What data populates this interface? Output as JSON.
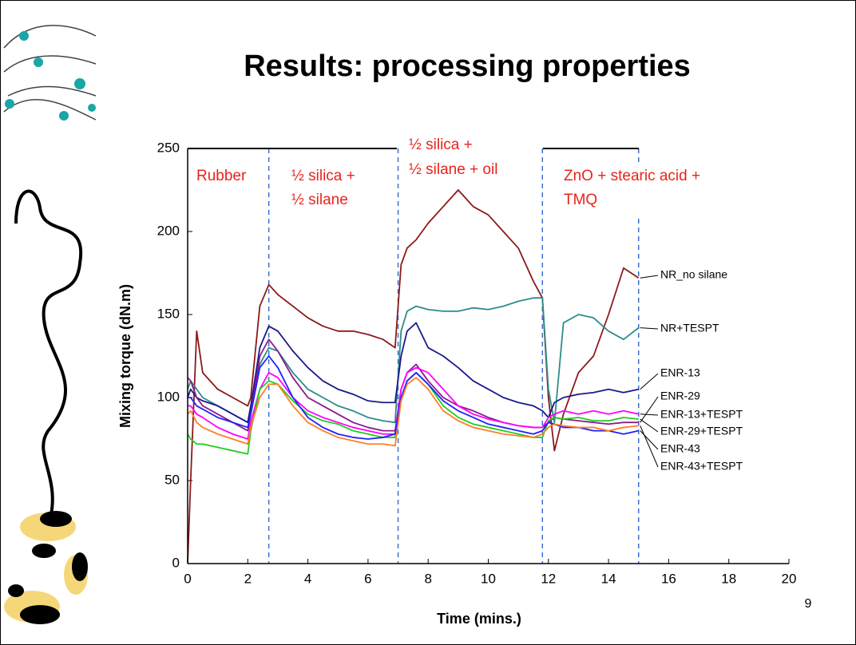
{
  "chart_data": {
    "type": "line",
    "title": "Results: processing properties",
    "x_label": "Time (mins.)",
    "y_label": "Mixing torque (dN.m)",
    "xlim": [
      0,
      20
    ],
    "xticks": [
      0,
      2,
      4,
      6,
      8,
      10,
      12,
      14,
      16,
      18,
      20
    ],
    "ylim": [
      0,
      250
    ],
    "yticks": [
      0,
      50,
      100,
      150,
      200,
      250
    ],
    "phase_boundaries": [
      2.7,
      7,
      11.8,
      15
    ],
    "annotations": [
      [
        "Rubber"
      ],
      [
        "½ silica +",
        "½ silane"
      ],
      [
        "½ silica +",
        "½ silane + oil"
      ],
      [
        "ZnO + stearic acid +",
        "TMQ"
      ]
    ],
    "x": [
      0,
      0.1,
      0.3,
      0.5,
      1,
      1.5,
      2,
      2.1,
      2.4,
      2.7,
      3,
      3.5,
      4,
      4.5,
      5,
      5.5,
      6,
      6.5,
      6.9,
      7.1,
      7.3,
      7.6,
      8,
      8.5,
      9,
      9.5,
      10,
      10.5,
      11,
      11.5,
      11.8,
      12,
      12.2,
      12.5,
      13,
      13.5,
      14,
      14.5,
      15
    ],
    "series": [
      {
        "name": "NR_no silane",
        "color": "#8b1a1a",
        "values": [
          0,
          50,
          140,
          115,
          105,
          100,
          95,
          100,
          155,
          168,
          162,
          155,
          148,
          143,
          140,
          140,
          138,
          135,
          130,
          180,
          190,
          195,
          205,
          215,
          225,
          215,
          210,
          200,
          190,
          170,
          160,
          100,
          68,
          90,
          115,
          125,
          150,
          178,
          172
        ]
      },
      {
        "name": "NR+TESPT",
        "color": "#2e8b8b",
        "values": [
          105,
          110,
          105,
          100,
          95,
          90,
          85,
          95,
          120,
          130,
          128,
          115,
          105,
          100,
          95,
          92,
          88,
          86,
          85,
          140,
          152,
          155,
          153,
          152,
          152,
          154,
          153,
          155,
          158,
          160,
          160,
          105,
          85,
          145,
          150,
          148,
          140,
          135,
          142
        ]
      },
      {
        "name": "ENR-13",
        "color": "#1a1a8b",
        "values": [
          100,
          105,
          100,
          98,
          95,
          90,
          85,
          95,
          130,
          143,
          140,
          128,
          118,
          110,
          105,
          102,
          98,
          97,
          97,
          125,
          140,
          145,
          130,
          125,
          118,
          110,
          105,
          100,
          97,
          95,
          92,
          88,
          97,
          100,
          102,
          103,
          105,
          103,
          105
        ]
      },
      {
        "name": "ENR-29",
        "color": "#8b1a8b",
        "values": [
          112,
          110,
          100,
          95,
          90,
          85,
          80,
          90,
          125,
          135,
          128,
          112,
          100,
          95,
          90,
          85,
          82,
          80,
          80,
          105,
          115,
          120,
          110,
          100,
          95,
          92,
          88,
          85,
          83,
          82,
          82,
          85,
          88,
          87,
          86,
          85,
          84,
          85,
          85
        ]
      },
      {
        "name": "ENR-13+TESPT",
        "color": "#ff00ff",
        "values": [
          95,
          95,
          90,
          88,
          82,
          78,
          75,
          85,
          105,
          115,
          112,
          100,
          92,
          88,
          85,
          82,
          80,
          78,
          78,
          105,
          115,
          118,
          115,
          105,
          95,
          90,
          87,
          85,
          83,
          82,
          82,
          88,
          90,
          92,
          90,
          92,
          90,
          92,
          90
        ]
      },
      {
        "name": "ENR-29+TESPT",
        "color": "#22cc22",
        "values": [
          78,
          75,
          72,
          72,
          70,
          68,
          66,
          80,
          105,
          110,
          108,
          98,
          90,
          86,
          84,
          80,
          78,
          76,
          76,
          100,
          110,
          115,
          108,
          95,
          88,
          84,
          82,
          80,
          78,
          76,
          76,
          86,
          88,
          87,
          88,
          86,
          86,
          88,
          87
        ]
      },
      {
        "name": "ENR-43",
        "color": "#2020ff",
        "values": [
          100,
          100,
          95,
          93,
          88,
          85,
          82,
          90,
          118,
          125,
          118,
          100,
          88,
          82,
          78,
          76,
          75,
          76,
          78,
          100,
          110,
          115,
          108,
          98,
          92,
          88,
          84,
          82,
          80,
          78,
          80,
          85,
          84,
          82,
          82,
          80,
          80,
          78,
          80
        ]
      },
      {
        "name": "ENR-43+TESPT",
        "color": "#ff7f27",
        "values": [
          90,
          92,
          85,
          82,
          78,
          75,
          72,
          82,
          100,
          108,
          108,
          95,
          85,
          80,
          76,
          74,
          72,
          72,
          71,
          98,
          108,
          112,
          105,
          92,
          86,
          82,
          80,
          78,
          77,
          76,
          78,
          82,
          84,
          83,
          82,
          82,
          80,
          82,
          83
        ]
      }
    ]
  },
  "slide": {
    "page_number": "9"
  }
}
